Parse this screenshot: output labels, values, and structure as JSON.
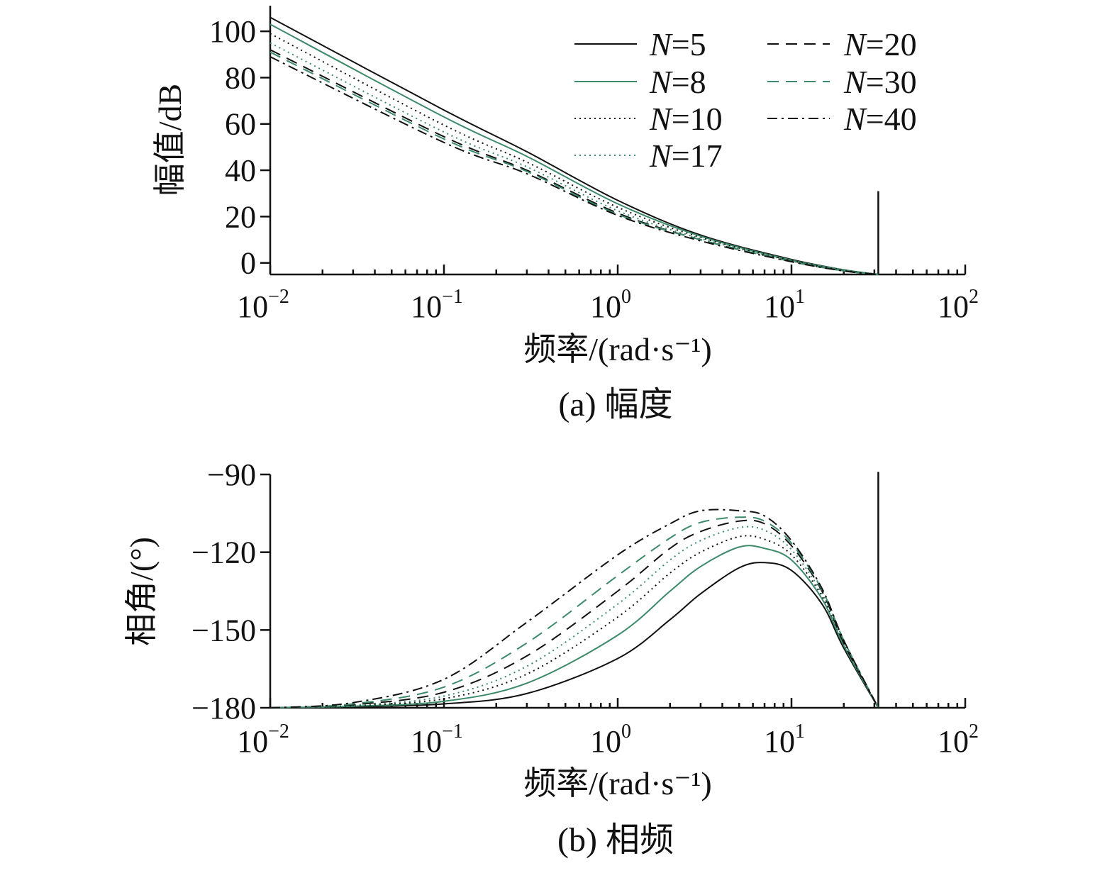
{
  "chart_data": [
    {
      "type": "line",
      "caption": "(a) 幅度",
      "xlabel": "频率/(rad·s⁻¹)",
      "ylabel": "幅值/dB",
      "xscale": "log",
      "xlim": [
        0.01,
        100
      ],
      "ylim": [
        -5,
        108
      ],
      "xticks": [
        {
          "value": 0.01,
          "base": "10",
          "exp": "−2"
        },
        {
          "value": 0.1,
          "base": "10",
          "exp": "−1"
        },
        {
          "value": 1,
          "base": "10",
          "exp": "0"
        },
        {
          "value": 10,
          "base": "10",
          "exp": "1"
        },
        {
          "value": 100,
          "base": "10",
          "exp": "2"
        }
      ],
      "yticks": [
        {
          "value": 0,
          "label": "0"
        },
        {
          "value": 20,
          "label": "20"
        },
        {
          "value": 40,
          "label": "40"
        },
        {
          "value": 60,
          "label": "60"
        },
        {
          "value": 80,
          "label": "80"
        },
        {
          "value": 100,
          "label": "100"
        }
      ],
      "vline": {
        "x": 31.6,
        "y_from": -5,
        "y_to": 31
      },
      "legend": {
        "placement": "top-right",
        "columns": 2
      },
      "x": [
        0.01,
        0.1,
        0.3,
        1,
        3,
        10,
        20,
        31.6
      ],
      "series": [
        {
          "name": "N=5",
          "N": "N",
          "rest": "=5",
          "color": "#111111",
          "dash": "",
          "values": [
            106,
            66,
            48,
            27,
            12,
            1.5,
            -3,
            -5
          ]
        },
        {
          "name": "N=8",
          "N": "N",
          "rest": "=8",
          "color": "#3d8a6a",
          "dash": "",
          "values": [
            103,
            63,
            46,
            25.5,
            11.5,
            1.2,
            -3,
            -5
          ]
        },
        {
          "name": "N=10",
          "N": "N",
          "rest": "=10",
          "color": "#111111",
          "dash": "2 5",
          "values": [
            99,
            59.5,
            43.5,
            24,
            11,
            1,
            -3.2,
            -5
          ]
        },
        {
          "name": "N=17",
          "N": "N",
          "rest": "=17",
          "color": "#3d8a6a",
          "dash": "2 5",
          "values": [
            95,
            56.5,
            41.5,
            22.5,
            10.5,
            0.8,
            -3.3,
            -5
          ]
        },
        {
          "name": "N=20",
          "N": "N",
          "rest": "=20",
          "color": "#111111",
          "dash": "16 10",
          "values": [
            92,
            54.5,
            40,
            21.5,
            10,
            0.6,
            -3.4,
            -5
          ]
        },
        {
          "name": "N=30",
          "N": "N",
          "rest": "=30",
          "color": "#3d8a6a",
          "dash": "16 10",
          "values": [
            91,
            53.5,
            39.5,
            21,
            10,
            0.6,
            -3.4,
            -5
          ]
        },
        {
          "name": "N=40",
          "N": "N",
          "rest": "=40",
          "color": "#111111",
          "dash": "14 6 3 6",
          "values": [
            89,
            52,
            38.5,
            20.5,
            9.5,
            0.5,
            -3.5,
            -5
          ]
        }
      ]
    },
    {
      "type": "line",
      "caption": "(b) 相频",
      "xlabel": "频率/(rad·s⁻¹)",
      "ylabel": "相角/(°)",
      "xscale": "log",
      "xlim": [
        0.01,
        100
      ],
      "ylim": [
        -180,
        -90
      ],
      "xticks": [
        {
          "value": 0.01,
          "base": "10",
          "exp": "−2"
        },
        {
          "value": 0.1,
          "base": "10",
          "exp": "−1"
        },
        {
          "value": 1,
          "base": "10",
          "exp": "0"
        },
        {
          "value": 10,
          "base": "10",
          "exp": "1"
        },
        {
          "value": 100,
          "base": "10",
          "exp": "2"
        }
      ],
      "yticks": [
        {
          "value": -180,
          "label": "−180"
        },
        {
          "value": -150,
          "label": "−150"
        },
        {
          "value": -120,
          "label": "−120"
        },
        {
          "value": -90,
          "label": "−90"
        }
      ],
      "vline": {
        "x": 31.6,
        "y_from": -180,
        "y_to": -89
      },
      "x": [
        0.01,
        0.03,
        0.1,
        0.3,
        1,
        2,
        3,
        5,
        7,
        10,
        15,
        20,
        31.6
      ],
      "series": [
        {
          "name": "N=5",
          "color": "#111111",
          "dash": "",
          "values": [
            -180,
            -179.6,
            -178.5,
            -174.5,
            -161,
            -146,
            -136,
            -126,
            -124,
            -127,
            -140,
            -157,
            -180
          ]
        },
        {
          "name": "N=8",
          "color": "#3d8a6a",
          "dash": "",
          "values": [
            -180,
            -179.4,
            -177.5,
            -170.5,
            -152,
            -135,
            -125.5,
            -118,
            -118.5,
            -123,
            -138,
            -156,
            -180
          ]
        },
        {
          "name": "N=10",
          "color": "#111111",
          "dash": "2 5",
          "values": [
            -180,
            -179.2,
            -176.5,
            -167,
            -145,
            -128,
            -120,
            -114,
            -115,
            -121,
            -137,
            -155,
            -180
          ]
        },
        {
          "name": "N=17",
          "color": "#3d8a6a",
          "dash": "2 5",
          "values": [
            -180,
            -179,
            -175.5,
            -164,
            -140,
            -123,
            -115.5,
            -110.5,
            -111.5,
            -119,
            -136,
            -155,
            -180
          ]
        },
        {
          "name": "N=20",
          "color": "#111111",
          "dash": "16 10",
          "values": [
            -180,
            -178.8,
            -174,
            -160,
            -135,
            -118.5,
            -112,
            -108,
            -109,
            -117.5,
            -135,
            -155,
            -180
          ]
        },
        {
          "name": "N=30",
          "color": "#3d8a6a",
          "dash": "16 10",
          "values": [
            -180,
            -178.5,
            -172,
            -155,
            -129,
            -114.5,
            -108.5,
            -106.5,
            -108,
            -116.5,
            -134.5,
            -154,
            -180
          ]
        },
        {
          "name": "N=40",
          "color": "#111111",
          "dash": "14 6 3 6",
          "values": [
            -180,
            -178,
            -169,
            -147,
            -121,
            -109,
            -104,
            -104,
            -106,
            -115.5,
            -134,
            -154,
            -180
          ]
        }
      ]
    }
  ]
}
